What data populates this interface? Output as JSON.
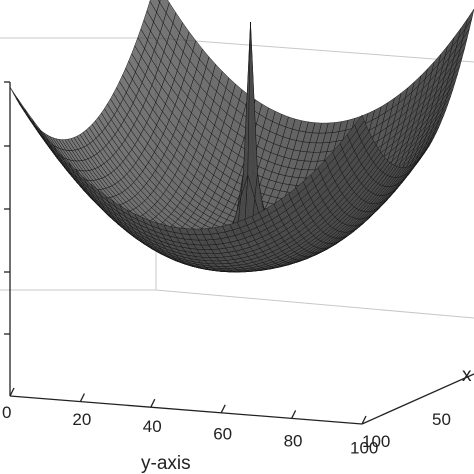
{
  "chart_data": {
    "type": "surface",
    "mesh": "wireframe",
    "surface_color": "#4a4a4a",
    "mesh_color": "#141414",
    "grid": true,
    "xlabel": "x",
    "ylabel": "y-axis",
    "y_ticks": [
      "0",
      "20",
      "40",
      "60",
      "80",
      "100"
    ],
    "x_ticks": [
      "100",
      "50"
    ],
    "ylim": [
      0,
      100
    ],
    "xlim": [
      0,
      100
    ],
    "description_points": [
      {
        "label": "spike",
        "x": 50,
        "y": 50
      }
    ]
  }
}
